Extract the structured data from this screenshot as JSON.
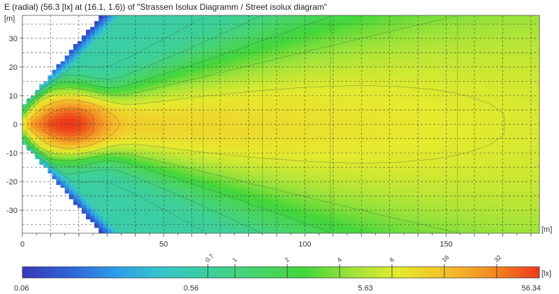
{
  "chart_data": {
    "type": "heatmap",
    "title": "E (radial) (56.3 [lx] at (16.1, 1.6)) of \"Strassen Isolux Diagramm / Street isolux diagram\"",
    "xlabel": "[m]",
    "ylabel": "[m]",
    "xlim": [
      0,
      183
    ],
    "ylim": [
      -38,
      38
    ],
    "x_ticks": [
      0,
      50,
      100,
      150
    ],
    "y_ticks": [
      30,
      20,
      10,
      0,
      -10,
      -20,
      -30
    ],
    "x_tick_labels": [
      "0",
      "50",
      "100",
      "150"
    ],
    "y_tick_labels": [
      "30",
      "20",
      "10",
      "0",
      "-10",
      "-20",
      "-30"
    ],
    "grid": true,
    "grid_step_x": 10,
    "grid_step_y": 5,
    "max_value": 56.3,
    "max_location": [
      16.1,
      1.6
    ],
    "colorbar": {
      "unit": "[lx]",
      "min": 0.06,
      "max": 56.34,
      "scale": "log",
      "labels": [
        "0.06",
        "0.56",
        "5.63",
        "56.34"
      ],
      "label_values": [
        0.06,
        0.56,
        5.63,
        56.34
      ],
      "isoline_labels": [
        "0.7",
        "1",
        "2",
        "4",
        "8",
        "16",
        "32"
      ],
      "isoline_values": [
        0.7,
        1,
        2,
        4,
        8,
        16,
        32
      ],
      "colors": [
        "#3a37b8",
        "#2f63d6",
        "#2f9ce8",
        "#36c5c9",
        "#3ccf9c",
        "#48d46a",
        "#43d63a",
        "#9ee33a",
        "#e6ea2e",
        "#f6c02a",
        "#f48a22",
        "#ec3a1a"
      ]
    }
  }
}
